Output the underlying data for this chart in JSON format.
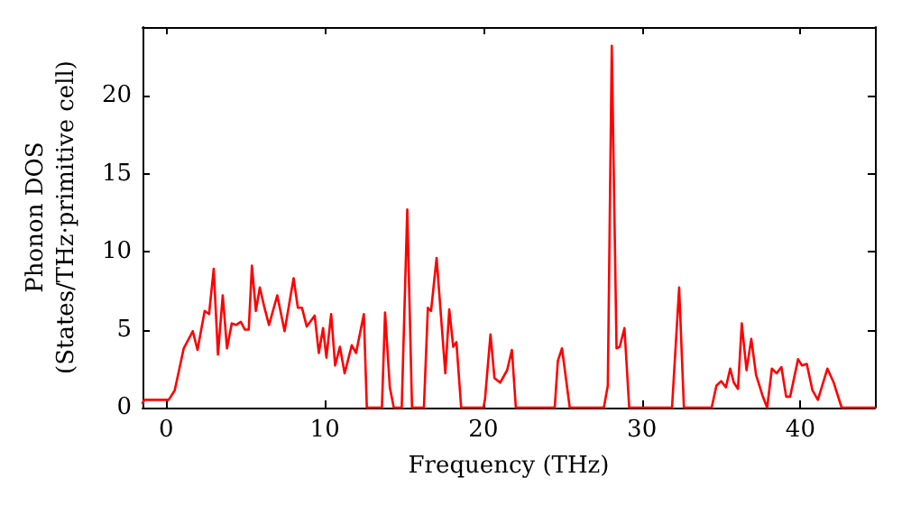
{
  "chart_data": {
    "type": "line",
    "xlabel": "Frequency (THz)",
    "ylabel": "Phonon DOS\n(States/THz·primitive cell)",
    "xlim": [
      -1.5,
      44.7
    ],
    "xticks": [
      0,
      10,
      20,
      30,
      40
    ],
    "ylim": [
      0,
      24.4
    ],
    "yticks": [
      0,
      5,
      10,
      15,
      20
    ],
    "grid": false,
    "marker": "none",
    "line_style": "solid",
    "series": [
      {
        "color": "#ff0000",
        "x": [
          -1.5,
          -1.36,
          0.15,
          0.53,
          1.1,
          1.67,
          1.97,
          2.42,
          2.7,
          2.99,
          3.26,
          3.56,
          3.83,
          4.13,
          4.4,
          4.7,
          4.96,
          5.2,
          5.4,
          5.65,
          5.9,
          6.17,
          6.48,
          7.0,
          7.46,
          8.03,
          8.3,
          8.56,
          8.86,
          9.36,
          9.62,
          9.89,
          10.1,
          10.4,
          10.65,
          10.95,
          11.25,
          11.7,
          11.97,
          12.46,
          12.65,
          13.6,
          13.8,
          14.1,
          14.35,
          14.85,
          15.2,
          15.5,
          16.25,
          16.5,
          16.7,
          17.05,
          17.6,
          17.85,
          18.1,
          18.3,
          18.6,
          20.0,
          20.1,
          20.45,
          20.7,
          21.06,
          21.5,
          21.8,
          22.05,
          24.5,
          24.7,
          24.96,
          25.45,
          27.6,
          27.85,
          28.1,
          28.4,
          28.6,
          28.9,
          29.2,
          31.9,
          32.35,
          32.65,
          34.4,
          34.7,
          35.0,
          35.3,
          35.57,
          35.8,
          36.06,
          36.3,
          36.6,
          36.9,
          37.2,
          37.6,
          37.9,
          38.2,
          38.5,
          38.8,
          39.1,
          39.35,
          39.85,
          40.1,
          40.4,
          40.76,
          41.1,
          41.7,
          42.1,
          42.6,
          44.7
        ],
        "values": [
          0.3,
          0.5,
          0.5,
          1.1,
          3.8,
          4.9,
          3.7,
          6.2,
          6.0,
          8.9,
          3.4,
          7.2,
          3.8,
          5.4,
          5.3,
          5.5,
          5.0,
          5.0,
          9.1,
          6.2,
          7.7,
          6.5,
          5.3,
          7.2,
          4.9,
          8.3,
          6.4,
          6.4,
          5.2,
          5.9,
          3.5,
          5.1,
          3.2,
          6.0,
          2.7,
          3.9,
          2.2,
          4.0,
          3.5,
          6.0,
          0,
          0,
          6.1,
          1.3,
          0,
          0,
          12.7,
          0,
          0,
          6.4,
          6.2,
          9.6,
          2.2,
          6.3,
          3.9,
          4.2,
          0,
          0,
          0.5,
          4.7,
          1.9,
          1.6,
          2.4,
          3.7,
          0,
          0,
          3.0,
          3.8,
          0,
          0,
          1.4,
          23.2,
          3.8,
          3.9,
          5.1,
          0,
          0,
          7.7,
          0,
          0,
          1.4,
          1.7,
          1.3,
          2.5,
          1.6,
          1.2,
          5.4,
          2.4,
          4.4,
          2.1,
          0.8,
          0,
          2.5,
          2.2,
          2.6,
          0.7,
          0.7,
          3.1,
          2.7,
          2.8,
          1.1,
          0.5,
          2.5,
          1.6,
          0,
          0
        ]
      }
    ]
  }
}
